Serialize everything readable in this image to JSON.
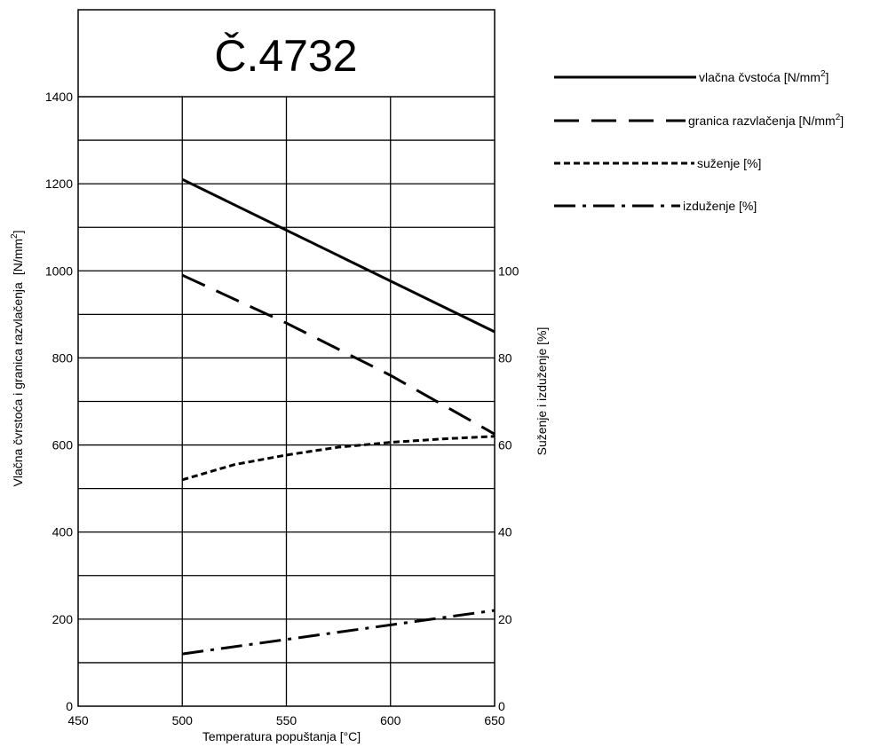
{
  "chart_data": {
    "type": "line",
    "title": "Č.4732",
    "xlabel": "Temperatura popuštanja [°C]",
    "ylabel_left": "Vlačna čvrstoća i granica razvlačenja",
    "ylabel_left_unit": "[N/mm",
    "ylabel_left_unit_sup": "2",
    "ylabel_left_unit_close": "]",
    "ylabel_right": "Suženje i izduženje  [%]",
    "xlim": [
      450,
      650
    ],
    "ylim_left": [
      0,
      1400
    ],
    "ylim_right": [
      0,
      140
    ],
    "x_ticks": [
      "450",
      "500",
      "550",
      "600",
      "650"
    ],
    "y_left_ticks": [
      "0",
      "200",
      "400",
      "600",
      "800",
      "1000",
      "1200",
      "1400"
    ],
    "y_right_ticks": [
      "0",
      "20",
      "40",
      "60",
      "80",
      "100"
    ],
    "grid": true,
    "legend_position": "right",
    "series": [
      {
        "name": "vlačna čvstoća [N/mm",
        "name_sup": "2",
        "name_close": "]",
        "axis": "left",
        "style": "solid",
        "x": [
          500,
          650
        ],
        "values": [
          1210,
          860
        ]
      },
      {
        "name": "granica razvlačenja [N/mm",
        "name_sup": "2",
        "name_close": "]",
        "axis": "left",
        "style": "dashed",
        "x": [
          500,
          550,
          600,
          650
        ],
        "values": [
          990,
          880,
          760,
          625
        ]
      },
      {
        "name": "suženje [%]",
        "name_sup": "",
        "name_close": "",
        "axis": "right",
        "style": "dotted",
        "x": [
          500,
          525,
          550,
          575,
          600,
          625,
          650
        ],
        "values": [
          52,
          55.5,
          57.7,
          59.5,
          60.6,
          61.4,
          62
        ]
      },
      {
        "name": "izduženje [%]",
        "name_sup": "",
        "name_close": "",
        "axis": "right",
        "style": "dashdot",
        "x": [
          500,
          650
        ],
        "values": [
          12,
          22
        ]
      }
    ]
  }
}
